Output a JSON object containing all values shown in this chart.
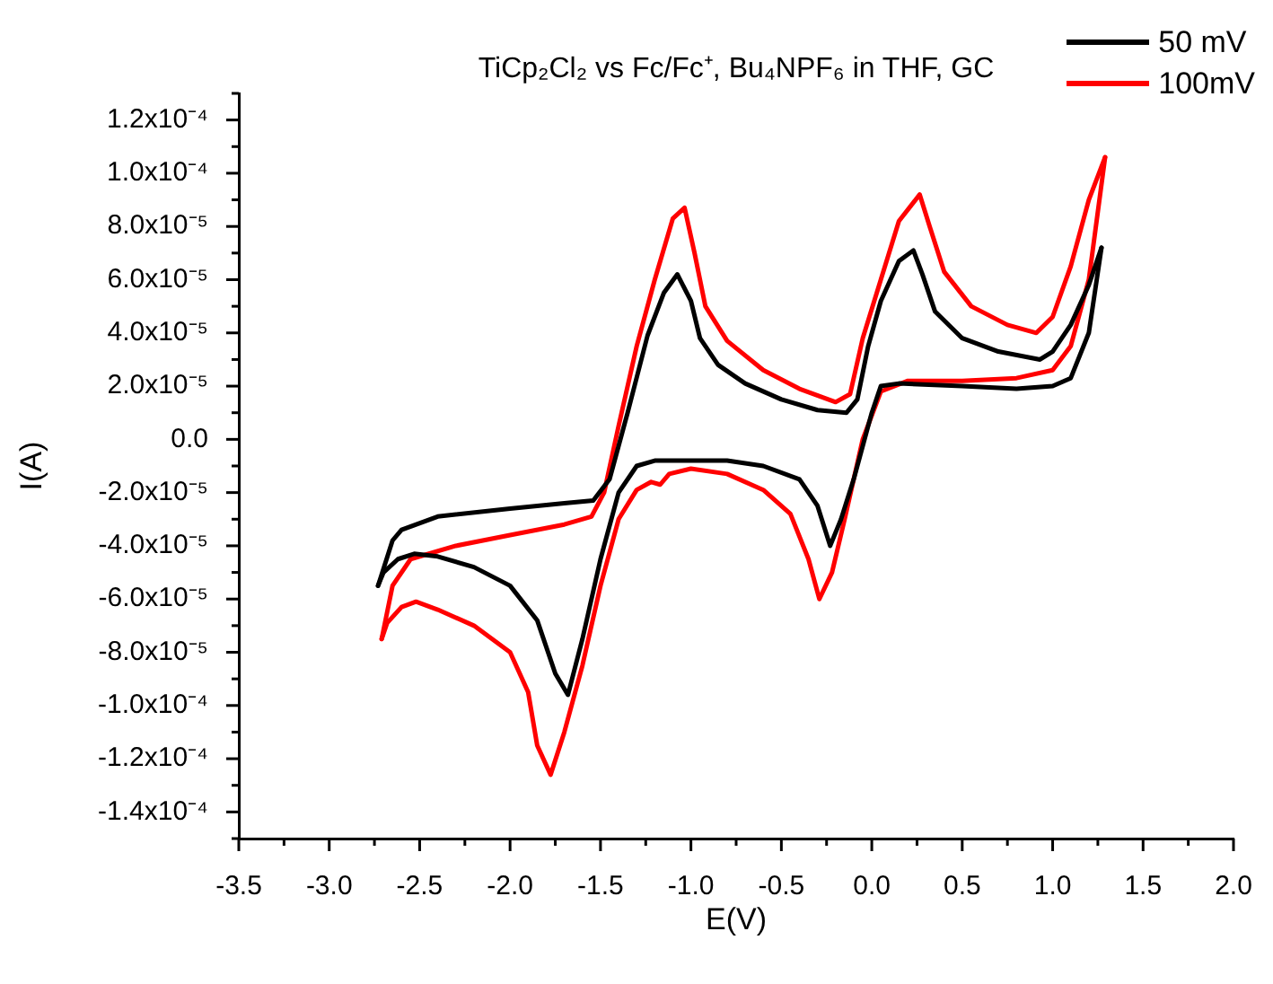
{
  "chart_data": {
    "type": "line",
    "title": "TiCp₂Cl₂ vs Fc/Fc⁺, Bu₄NPF₆ in THF, GC",
    "xlabel": "E(V)",
    "ylabel": "I(A)",
    "legend": "top right",
    "marker": "none",
    "grid": false,
    "series": [
      {
        "name": "50 mV",
        "color": "#000000",
        "x": [
          -2.73,
          -2.65,
          -2.6,
          -2.4,
          -2.0,
          -1.7,
          -1.54,
          -1.45,
          -1.35,
          -1.24,
          -1.15,
          -1.075,
          -1.0,
          -0.95,
          -0.85,
          -0.7,
          -0.5,
          -0.3,
          -0.14,
          -0.08,
          -0.02,
          0.05,
          0.15,
          0.23,
          0.28,
          0.35,
          0.5,
          0.7,
          0.93,
          1.0,
          1.1,
          1.2,
          1.27
        ],
        "values": [
          -5.5e-05,
          -3.8e-05,
          -3.4e-05,
          -2.9e-05,
          -2.6e-05,
          -2.4e-05,
          -2.3e-05,
          -1.5e-05,
          1e-05,
          3.9e-05,
          5.5e-05,
          6.2e-05,
          5.2e-05,
          3.8e-05,
          2.8e-05,
          2.1e-05,
          1.5e-05,
          1.1e-05,
          1e-05,
          1.5e-05,
          3.5e-05,
          5.2e-05,
          6.7e-05,
          7.1e-05,
          6.2e-05,
          4.8e-05,
          3.8e-05,
          3.3e-05,
          3e-05,
          3.3e-05,
          4.3e-05,
          5.8e-05,
          7.2e-05
        ]
      },
      {
        "color": "#000000",
        "x": [
          1.27,
          1.2,
          1.1,
          1.0,
          0.8,
          0.5,
          0.15,
          0.05,
          0.0,
          -0.1,
          -0.17,
          -0.23,
          -0.3,
          -0.4,
          -0.6,
          -0.8,
          -1.0,
          -1.2,
          -1.3,
          -1.4,
          -1.5,
          -1.6,
          -1.68,
          -1.75,
          -1.85,
          -2.0,
          -2.2,
          -2.4,
          -2.53,
          -2.62,
          -2.7,
          -2.73
        ],
        "values": [
          7.2e-05,
          4e-05,
          2.3e-05,
          2e-05,
          1.9e-05,
          2e-05,
          2.1e-05,
          2e-05,
          1e-05,
          -1.5e-05,
          -3e-05,
          -4e-05,
          -2.5e-05,
          -1.5e-05,
          -1e-05,
          -8e-06,
          -8e-06,
          -8e-06,
          -1e-05,
          -2e-05,
          -4.5e-05,
          -7.5e-05,
          -9.6e-05,
          -8.8e-05,
          -6.8e-05,
          -5.5e-05,
          -4.8e-05,
          -4.4e-05,
          -4.3e-05,
          -4.5e-05,
          -5e-05,
          -5.5e-05
        ]
      },
      {
        "name": "100mV",
        "color": "#ff0000",
        "x": [
          -2.71,
          -2.65,
          -2.55,
          -2.3,
          -2.0,
          -1.7,
          -1.55,
          -1.48,
          -1.4,
          -1.3,
          -1.2,
          -1.1,
          -1.035,
          -0.98,
          -0.92,
          -0.8,
          -0.6,
          -0.4,
          -0.2,
          -0.12,
          -0.05,
          0.05,
          0.15,
          0.265,
          0.32,
          0.4,
          0.55,
          0.75,
          0.91,
          1.0,
          1.1,
          1.2,
          1.29
        ],
        "values": [
          -7.5e-05,
          -5.5e-05,
          -4.5e-05,
          -4e-05,
          -3.6e-05,
          -3.2e-05,
          -2.9e-05,
          -2e-05,
          5e-06,
          3.5e-05,
          6e-05,
          8.3e-05,
          8.7e-05,
          7e-05,
          5e-05,
          3.7e-05,
          2.6e-05,
          1.9e-05,
          1.4e-05,
          1.7e-05,
          3.8e-05,
          6e-05,
          8.2e-05,
          9.2e-05,
          8e-05,
          6.3e-05,
          5e-05,
          4.3e-05,
          4e-05,
          4.6e-05,
          6.5e-05,
          9e-05,
          0.000106
        ]
      },
      {
        "color": "#ff0000",
        "x": [
          1.29,
          1.2,
          1.1,
          1.0,
          0.8,
          0.5,
          0.2,
          0.05,
          -0.05,
          -0.15,
          -0.22,
          -0.29,
          -0.35,
          -0.45,
          -0.6,
          -0.8,
          -1.0,
          -1.12,
          -1.17,
          -1.22,
          -1.3,
          -1.4,
          -1.5,
          -1.6,
          -1.7,
          -1.776,
          -1.85,
          -1.9,
          -2.0,
          -2.2,
          -2.4,
          -2.52,
          -2.6,
          -2.68,
          -2.71
        ],
        "values": [
          0.000106,
          6e-05,
          3.5e-05,
          2.6e-05,
          2.3e-05,
          2.2e-05,
          2.2e-05,
          1.8e-05,
          0.0,
          -3e-05,
          -5e-05,
          -6e-05,
          -4.5e-05,
          -2.8e-05,
          -1.9e-05,
          -1.3e-05,
          -1.1e-05,
          -1.3e-05,
          -1.7e-05,
          -1.6e-05,
          -1.9e-05,
          -3e-05,
          -5.5e-05,
          -8.5e-05,
          -0.00011,
          -0.000126,
          -0.000115,
          -9.5e-05,
          -8e-05,
          -7e-05,
          -6.4e-05,
          -6.1e-05,
          -6.3e-05,
          -6.9e-05,
          -7.5e-05
        ]
      }
    ],
    "xlim": [
      -3.5,
      2.0
    ],
    "xticks": [
      -3.5,
      {
        "value": -3.25,
        "label": null
      },
      {
        "value": -3,
        "label": "-3.0"
      },
      {
        "value": -2.75,
        "label": null
      },
      -2.5,
      {
        "value": -2.25,
        "label": null
      },
      {
        "value": -2,
        "label": "-2.0"
      },
      {
        "value": -1.75,
        "label": null
      },
      -1.5,
      {
        "value": -1.25,
        "label": null
      },
      {
        "value": -1,
        "label": "-1.0"
      },
      {
        "value": -0.75,
        "label": null
      },
      -0.5,
      {
        "value": -0.25,
        "label": null
      },
      {
        "value": 0,
        "label": "0.0"
      },
      {
        "value": 0.25,
        "label": null
      },
      0.5,
      {
        "value": 0.75,
        "label": null
      },
      {
        "value": 1,
        "label": "1.0"
      },
      {
        "value": 1.25,
        "label": null
      },
      1.5,
      {
        "value": 1.75,
        "label": null
      },
      {
        "value": 2,
        "label": "2.0"
      }
    ],
    "ylim": [
      -0.00015,
      0.00013
    ],
    "yticks": [
      {
        "value": -0.00015,
        "label": null
      },
      {
        "value": -0.00014,
        "label": "-1.4x10⁻⁴"
      },
      {
        "value": -0.00013,
        "label": null
      },
      {
        "value": -0.00012,
        "label": "-1.2x10⁻⁴"
      },
      {
        "value": -0.00011,
        "label": null
      },
      {
        "value": -0.0001,
        "label": "-1.0x10⁻⁴"
      },
      {
        "value": -9e-05,
        "label": null
      },
      {
        "value": -8e-05,
        "label": "-8.0x10⁻⁵"
      },
      {
        "value": -7e-05,
        "label": null
      },
      {
        "value": -6e-05,
        "label": "-6.0x10⁻⁵"
      },
      {
        "value": -5e-05,
        "label": null
      },
      {
        "value": -4e-05,
        "label": "-4.0x10⁻⁵"
      },
      {
        "value": -3e-05,
        "label": null
      },
      {
        "value": -2e-05,
        "label": "-2.0x10⁻⁵"
      },
      {
        "value": -1e-05,
        "label": null
      },
      {
        "value": 0,
        "label": "0.0"
      },
      {
        "value": 1e-05,
        "label": null
      },
      {
        "value": 2e-05,
        "label": "2.0x10⁻⁵"
      },
      {
        "value": 3e-05,
        "label": null
      },
      {
        "value": 4e-05,
        "label": "4.0x10⁻⁵"
      },
      {
        "value": 5e-05,
        "label": null
      },
      {
        "value": 6e-05,
        "label": "6.0x10⁻⁵"
      },
      {
        "value": 7e-05,
        "label": null
      },
      {
        "value": 8e-05,
        "label": "8.0x10⁻⁵"
      },
      {
        "value": 9e-05,
        "label": null
      },
      {
        "value": 0.0001,
        "label": "1.0x10⁻⁴"
      },
      {
        "value": 0.00011,
        "label": null
      },
      {
        "value": 0.00012,
        "label": "1.2x10⁻⁴"
      },
      {
        "value": 0.00013,
        "label": null
      }
    ]
  }
}
